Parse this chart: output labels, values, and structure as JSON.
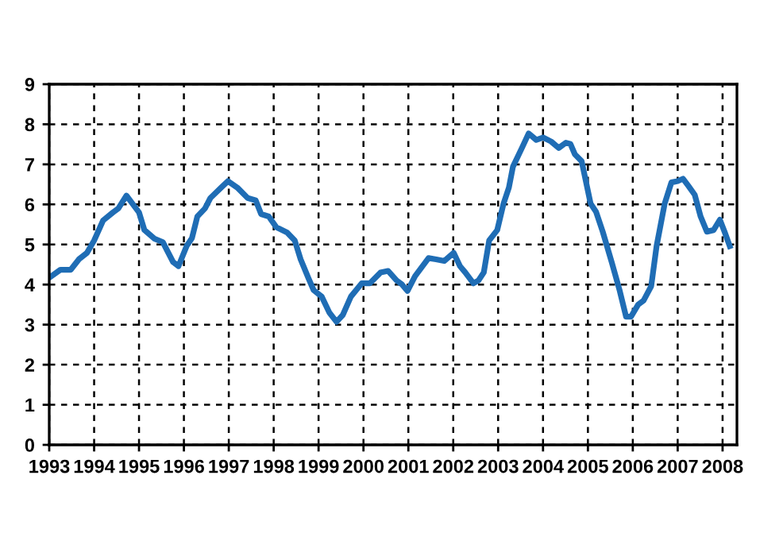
{
  "chart_data": {
    "type": "line",
    "x": [
      1993.0,
      1993.25,
      1993.48,
      1993.66,
      1993.84,
      1994.0,
      1994.2,
      1994.42,
      1994.54,
      1994.72,
      1994.9,
      1995.0,
      1995.12,
      1995.35,
      1995.53,
      1995.76,
      1995.88,
      1996.06,
      1996.18,
      1996.3,
      1996.47,
      1996.59,
      1996.83,
      1996.98,
      1997.19,
      1997.42,
      1997.6,
      1997.72,
      1997.89,
      1998.06,
      1998.3,
      1998.47,
      1998.6,
      1998.77,
      1998.89,
      1999.07,
      1999.24,
      1999.4,
      1999.54,
      1999.72,
      1999.96,
      2000.14,
      2000.38,
      2000.55,
      2000.74,
      2000.86,
      2000.98,
      2001.15,
      2001.45,
      2001.62,
      2001.8,
      2002.01,
      2002.15,
      2002.27,
      2002.45,
      2002.56,
      2002.68,
      2002.8,
      2002.98,
      2003.12,
      2003.24,
      2003.33,
      2003.53,
      2003.68,
      2003.85,
      2004.0,
      2004.18,
      2004.35,
      2004.51,
      2004.61,
      2004.71,
      2004.86,
      2005.06,
      2005.18,
      2005.33,
      2005.53,
      2005.71,
      2005.85,
      2005.96,
      2006.12,
      2006.24,
      2006.41,
      2006.53,
      2006.71,
      2006.86,
      2007.0,
      2007.12,
      2007.24,
      2007.38,
      2007.51,
      2007.65,
      2007.8,
      2007.94,
      2008.05,
      2008.16
    ],
    "series": [
      {
        "color": "#1f6db5",
        "values": [
          4.17,
          4.37,
          4.37,
          4.63,
          4.79,
          5.1,
          5.6,
          5.8,
          5.9,
          6.22,
          5.95,
          5.8,
          5.36,
          5.14,
          5.06,
          4.56,
          4.46,
          4.96,
          5.16,
          5.7,
          5.9,
          6.16,
          6.42,
          6.58,
          6.42,
          6.16,
          6.1,
          5.76,
          5.7,
          5.43,
          5.3,
          5.1,
          4.63,
          4.17,
          3.86,
          3.7,
          3.3,
          3.07,
          3.24,
          3.7,
          4.03,
          4.03,
          4.3,
          4.34,
          4.1,
          4.0,
          3.84,
          4.21,
          4.66,
          4.63,
          4.59,
          4.79,
          4.46,
          4.3,
          4.03,
          4.1,
          4.3,
          5.1,
          5.36,
          6.02,
          6.42,
          6.94,
          7.41,
          7.77,
          7.61,
          7.67,
          7.57,
          7.41,
          7.54,
          7.51,
          7.25,
          7.08,
          6.02,
          5.82,
          5.32,
          4.56,
          3.84,
          3.2,
          3.2,
          3.5,
          3.6,
          3.96,
          4.96,
          6.02,
          6.55,
          6.58,
          6.64,
          6.46,
          6.24,
          5.7,
          5.32,
          5.36,
          5.62,
          5.3,
          4.96
        ]
      }
    ],
    "xlim": [
      1993,
      2008.32
    ],
    "xticks": [
      1993,
      1994,
      1995,
      1996,
      1997,
      1998,
      1999,
      2000,
      2001,
      2002,
      2003,
      2004,
      2005,
      2006,
      2007,
      2008
    ],
    "ylim": [
      0,
      9
    ],
    "yticks": [
      0,
      1,
      2,
      3,
      4,
      5,
      6,
      7,
      8,
      9
    ],
    "grid": true,
    "line_style": "solid",
    "marker": "none"
  }
}
